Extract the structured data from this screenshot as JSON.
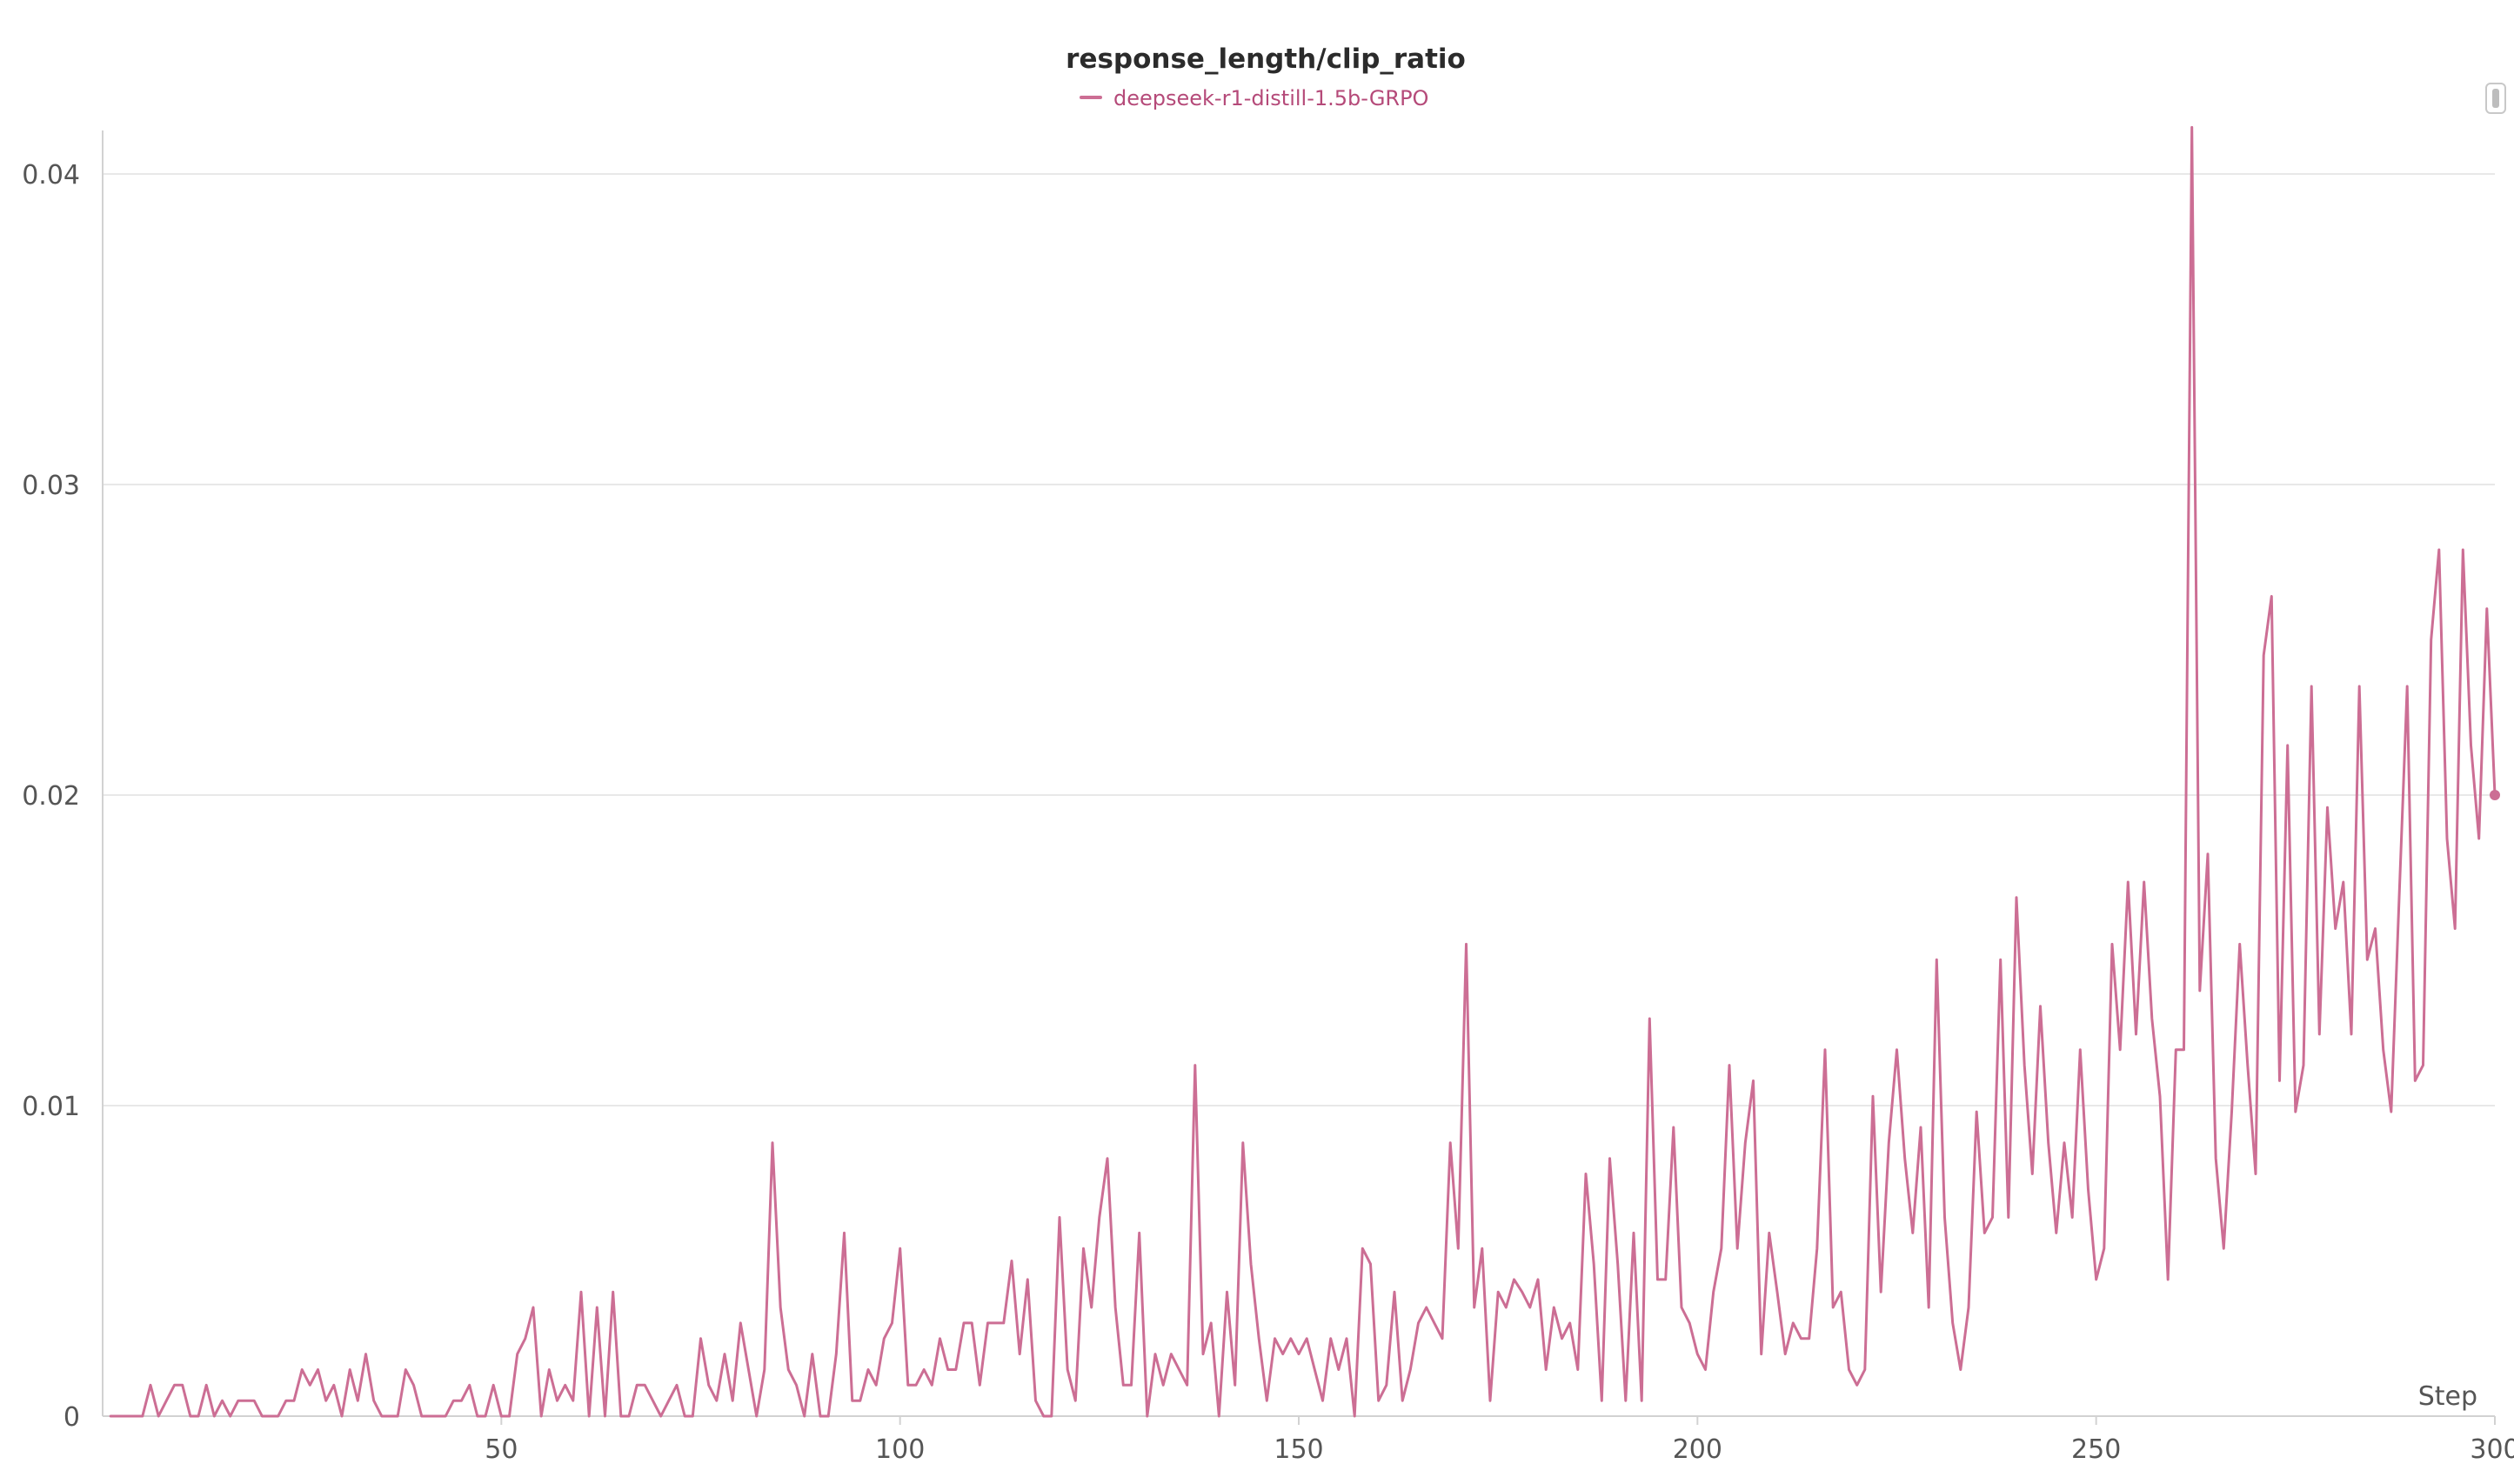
{
  "colors": {
    "series": "#cc6e94",
    "series_text": "#b54a79",
    "grid": "#e8e8e8",
    "axis": "#d2d2d2",
    "tick_text": "#555555"
  },
  "chart_data": {
    "type": "line",
    "title": "response_length/clip_ratio",
    "xlabel": "Step",
    "ylabel": "",
    "xlim": [
      0,
      300
    ],
    "ylim": [
      0,
      0.0415
    ],
    "xticks": [
      50,
      100,
      150,
      200,
      250,
      300
    ],
    "yticks": [
      0,
      0.01,
      0.02,
      0.03,
      0.04
    ],
    "xtick_labels": [
      "50",
      "100",
      "150",
      "200",
      "250",
      "300"
    ],
    "ytick_labels": [
      "0",
      "0.01",
      "0.02",
      "0.03",
      "0.04"
    ],
    "grid": "horizontal",
    "legend_position": "top-center",
    "series": [
      {
        "name": "deepseek-r1-distill-1.5b-GRPO",
        "color": "#cc6e94",
        "x": [
          1,
          2,
          3,
          4,
          5,
          6,
          7,
          8,
          9,
          10,
          11,
          12,
          13,
          14,
          15,
          16,
          17,
          18,
          19,
          20,
          21,
          22,
          23,
          24,
          25,
          26,
          27,
          28,
          29,
          30,
          31,
          32,
          33,
          34,
          35,
          36,
          37,
          38,
          39,
          40,
          41,
          42,
          43,
          44,
          45,
          46,
          47,
          48,
          49,
          50,
          51,
          52,
          53,
          54,
          55,
          56,
          57,
          58,
          59,
          60,
          61,
          62,
          63,
          64,
          65,
          66,
          67,
          68,
          69,
          70,
          71,
          72,
          73,
          74,
          75,
          76,
          77,
          78,
          79,
          80,
          81,
          82,
          83,
          84,
          85,
          86,
          87,
          88,
          89,
          90,
          91,
          92,
          93,
          94,
          95,
          96,
          97,
          98,
          99,
          100,
          101,
          102,
          103,
          104,
          105,
          106,
          107,
          108,
          109,
          110,
          111,
          112,
          113,
          114,
          115,
          116,
          117,
          118,
          119,
          120,
          121,
          122,
          123,
          124,
          125,
          126,
          127,
          128,
          129,
          130,
          131,
          132,
          133,
          134,
          135,
          136,
          137,
          138,
          139,
          140,
          141,
          142,
          143,
          144,
          145,
          146,
          147,
          148,
          149,
          150,
          151,
          152,
          153,
          154,
          155,
          156,
          157,
          158,
          159,
          160,
          161,
          162,
          163,
          164,
          165,
          166,
          167,
          168,
          169,
          170,
          171,
          172,
          173,
          174,
          175,
          176,
          177,
          178,
          179,
          180,
          181,
          182,
          183,
          184,
          185,
          186,
          187,
          188,
          189,
          190,
          191,
          192,
          193,
          194,
          195,
          196,
          197,
          198,
          199,
          200,
          201,
          202,
          203,
          204,
          205,
          206,
          207,
          208,
          209,
          210,
          211,
          212,
          213,
          214,
          215,
          216,
          217,
          218,
          219,
          220,
          221,
          222,
          223,
          224,
          225,
          226,
          227,
          228,
          229,
          230,
          231,
          232,
          233,
          234,
          235,
          236,
          237,
          238,
          239,
          240,
          241,
          242,
          243,
          244,
          245,
          246,
          247,
          248,
          249,
          250,
          251,
          252,
          253,
          254,
          255,
          256,
          257,
          258,
          259,
          260,
          261,
          262,
          263,
          264,
          265,
          266,
          267,
          268,
          269,
          270,
          271,
          272,
          273,
          274,
          275,
          276,
          277,
          278,
          279,
          280,
          281,
          282,
          283,
          284,
          285,
          286,
          287,
          288,
          289,
          290,
          291,
          292,
          293,
          294,
          295,
          296,
          297,
          298,
          299,
          300
        ],
        "y": [
          0,
          0,
          0,
          0,
          0,
          0.001,
          0,
          0.0005,
          0.001,
          0.001,
          0,
          0,
          0.001,
          0,
          0.0005,
          0,
          0.0005,
          0.0005,
          0.0005,
          0,
          0,
          0,
          0.0005,
          0.0005,
          0.0015,
          0.001,
          0.0015,
          0.0005,
          0.001,
          0,
          0.0015,
          0.0005,
          0.002,
          0.0005,
          0,
          0,
          0,
          0.0015,
          0.001,
          0,
          0,
          0,
          0,
          0.0005,
          0.0005,
          0.001,
          0,
          0,
          0.001,
          0,
          0,
          0.002,
          0.0025,
          0.0035,
          0,
          0.0015,
          0.0005,
          0.001,
          0.0005,
          0.004,
          0,
          0.0035,
          0,
          0.004,
          0,
          0,
          0.001,
          0.001,
          0.0005,
          0,
          0.0005,
          0.001,
          0,
          0,
          0.0025,
          0.001,
          0.0005,
          0.002,
          0.0005,
          0.003,
          0.0015,
          0,
          0.0015,
          0.0088,
          0.0035,
          0.0015,
          0.001,
          0,
          0.002,
          0,
          0,
          0.002,
          0.0059,
          0.0005,
          0.0005,
          0.0015,
          0.001,
          0.0025,
          0.003,
          0.0054,
          0.001,
          0.001,
          0.0015,
          0.001,
          0.0025,
          0.0015,
          0.0015,
          0.003,
          0.003,
          0.001,
          0.003,
          0.003,
          0.003,
          0.005,
          0.002,
          0.0044,
          0.0005,
          0,
          0,
          0.0064,
          0.0015,
          0.0005,
          0.0054,
          0.0035,
          0.0064,
          0.0083,
          0.0035,
          0.001,
          0.001,
          0.0059,
          0,
          0.002,
          0.001,
          0.002,
          0.0015,
          0.001,
          0.0113,
          0.002,
          0.003,
          0,
          0.004,
          0.001,
          0.0088,
          0.0049,
          0.0025,
          0.0005,
          0.0025,
          0.002,
          0.0025,
          0.002,
          0.0025,
          0.0015,
          0.0005,
          0.0025,
          0.0015,
          0.0025,
          0,
          0.0054,
          0.0049,
          0.0005,
          0.001,
          0.004,
          0.0005,
          0.0015,
          0.003,
          0.0035,
          0.003,
          0.0025,
          0.0088,
          0.0054,
          0.0152,
          0.0035,
          0.0054,
          0.0005,
          0.004,
          0.0035,
          0.0044,
          0.004,
          0.0035,
          0.0044,
          0.0015,
          0.0035,
          0.0025,
          0.003,
          0.0015,
          0.0078,
          0.0049,
          0.0005,
          0.0083,
          0.0049,
          0.0005,
          0.0059,
          0.0005,
          0.0128,
          0.0044,
          0.0044,
          0.0093,
          0.0035,
          0.003,
          0.002,
          0.0015,
          0.004,
          0.0054,
          0.0113,
          0.0054,
          0.0088,
          0.0108,
          0.002,
          0.0059,
          0.004,
          0.002,
          0.003,
          0.0025,
          0.0025,
          0.0054,
          0.0118,
          0.0035,
          0.004,
          0.0015,
          0.001,
          0.0015,
          0.0103,
          0.004,
          0.0088,
          0.0118,
          0.0083,
          0.0059,
          0.0093,
          0.0035,
          0.0147,
          0.0064,
          0.003,
          0.0015,
          0.0035,
          0.0098,
          0.0059,
          0.0064,
          0.0147,
          0.0064,
          0.0167,
          0.0113,
          0.0078,
          0.0132,
          0.0088,
          0.0059,
          0.0088,
          0.0064,
          0.0118,
          0.0073,
          0.0044,
          0.0054,
          0.0152,
          0.0118,
          0.0172,
          0.0123,
          0.0172,
          0.0128,
          0.0103,
          0.0044,
          0.0118,
          0.0118,
          0.0415,
          0.0137,
          0.0181,
          0.0083,
          0.0054,
          0.0098,
          0.0152,
          0.0113,
          0.0078,
          0.0245,
          0.0264,
          0.0108,
          0.0216,
          0.0098,
          0.0113,
          0.0235,
          0.0123,
          0.0196,
          0.0157,
          0.0172,
          0.0123,
          0.0235,
          0.0147,
          0.0157,
          0.0118,
          0.0098,
          0.0167,
          0.0235,
          0.0108,
          0.0113,
          0.025,
          0.0279,
          0.0186,
          0.0157,
          0.0279,
          0.0216,
          0.0186,
          0.026,
          0.02
        ]
      }
    ]
  }
}
